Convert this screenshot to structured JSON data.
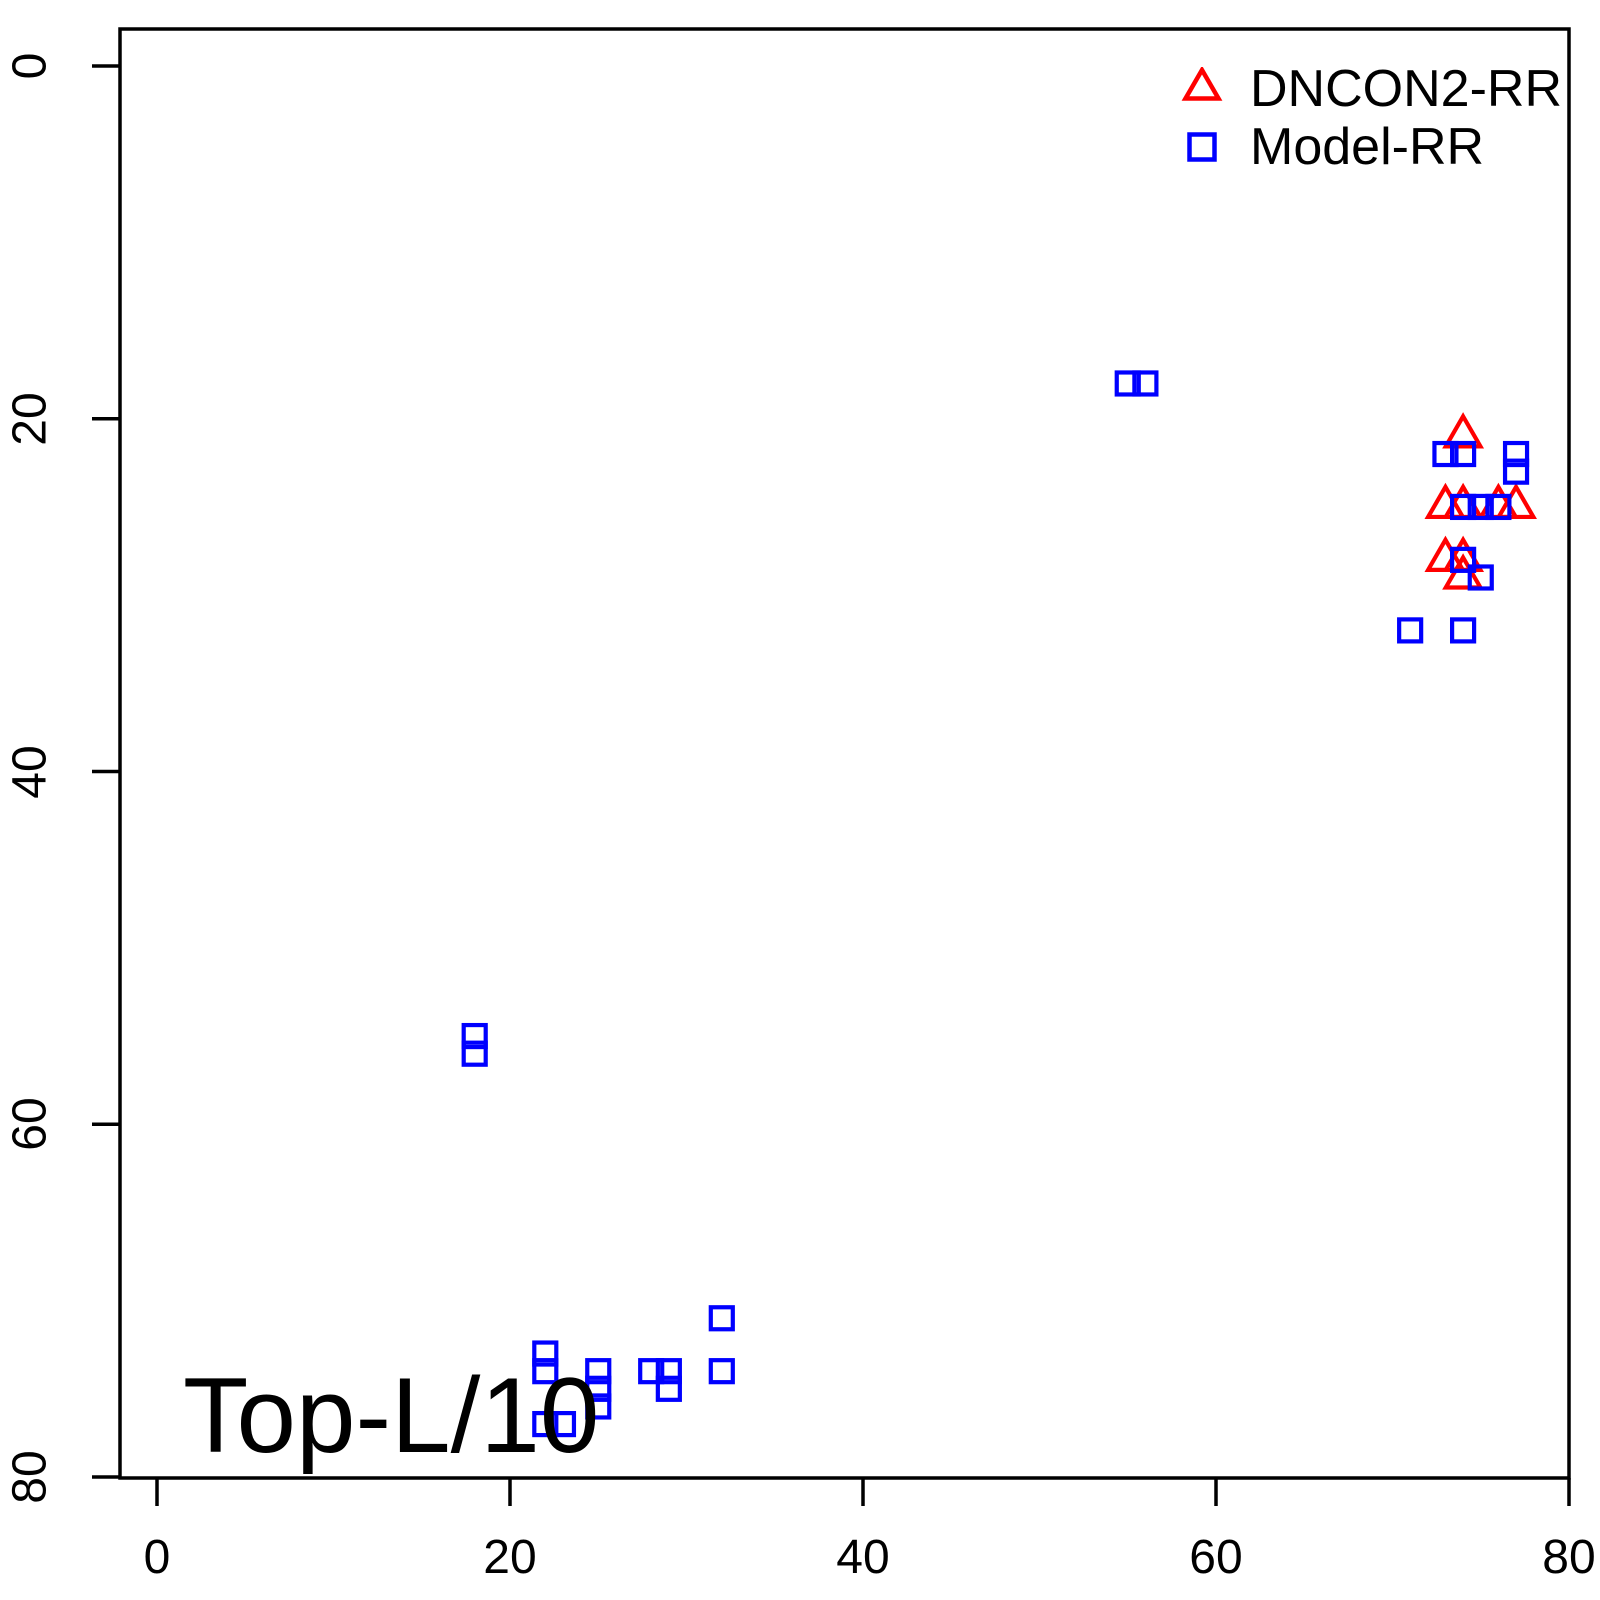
{
  "chart_data": {
    "type": "scatter",
    "title": "",
    "xlabel": "",
    "ylabel": "",
    "annotation": "Top-L/10",
    "xlim": [
      0,
      80
    ],
    "ylim": [
      80,
      0
    ],
    "y_axis_reversed": true,
    "grid": false,
    "legend_position": "top-right",
    "x_ticks": [
      "0",
      "20",
      "40",
      "60",
      "80"
    ],
    "x_tick_values": [
      0,
      20,
      40,
      60,
      80
    ],
    "y_ticks": [
      "0",
      "20",
      "40",
      "60",
      "80"
    ],
    "y_tick_values": [
      0,
      20,
      40,
      60,
      80
    ],
    "axis_color": "#000000",
    "legend": [
      {
        "label": "DNCON2-RR",
        "marker": "open-triangle",
        "color": "#FF0000"
      },
      {
        "label": "Model-RR",
        "marker": "open-square",
        "color": "#0000FF"
      }
    ],
    "series": [
      {
        "name": "DNCON2-RR",
        "marker": "open-triangle",
        "color": "#FF0000",
        "points": [
          [
            74,
            21
          ],
          [
            73,
            25
          ],
          [
            74,
            25
          ],
          [
            76,
            25
          ],
          [
            77,
            25
          ],
          [
            73,
            28
          ],
          [
            74,
            28
          ],
          [
            74,
            29
          ]
        ]
      },
      {
        "name": "Model-RR",
        "marker": "open-square",
        "color": "#0000FF",
        "points": [
          [
            55,
            18
          ],
          [
            56,
            18
          ],
          [
            73,
            22
          ],
          [
            74,
            22
          ],
          [
            77,
            22
          ],
          [
            77,
            23
          ],
          [
            74,
            25
          ],
          [
            75,
            25
          ],
          [
            76,
            25
          ],
          [
            74,
            28
          ],
          [
            75,
            29
          ],
          [
            71,
            32
          ],
          [
            74,
            32
          ],
          [
            18,
            55
          ],
          [
            18,
            56
          ],
          [
            22,
            73
          ],
          [
            22,
            74
          ],
          [
            25,
            74
          ],
          [
            25,
            75
          ],
          [
            25,
            76
          ],
          [
            28,
            74
          ],
          [
            29,
            74
          ],
          [
            29,
            75
          ],
          [
            32,
            71
          ],
          [
            32,
            74
          ],
          [
            22,
            77
          ],
          [
            23,
            77
          ]
        ]
      }
    ]
  }
}
